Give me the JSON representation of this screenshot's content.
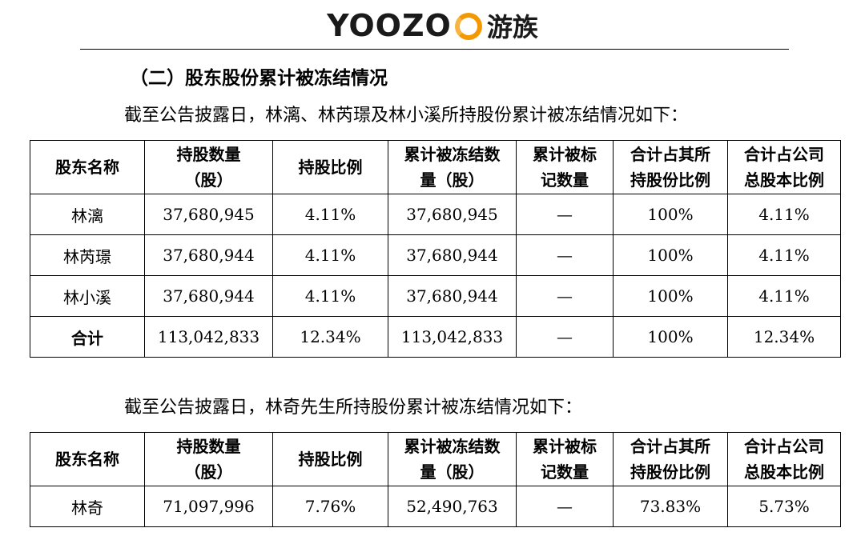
{
  "logo": {
    "text_before": "YOOZO",
    "mark_icon": "o-ring-logo-mark",
    "cn": "游族",
    "accent_color": "#f39800"
  },
  "section_title": "（二）股东股份累计被冻结情况",
  "paragraph1": "截至公告披露日，林漓、林芮璟及林小溪所持股份累计被冻结情况如下：",
  "paragraph2": "截至公告披露日，林奇先生所持股份累计被冻结情况如下：",
  "table_headers": [
    {
      "l1": "股东名称",
      "l2": ""
    },
    {
      "l1": "持股数量",
      "l2": "（股）"
    },
    {
      "l1": "持股比例",
      "l2": ""
    },
    {
      "l1": "累计被冻结数",
      "l2": "量（股）"
    },
    {
      "l1": "累计被标",
      "l2": "记数量"
    },
    {
      "l1": "合计占其所",
      "l2": "持股份比例"
    },
    {
      "l1": "合计占公司",
      "l2": "总股本比例"
    }
  ],
  "table1_rows": [
    [
      "林漓",
      "37,680,945",
      "4.11%",
      "37,680,945",
      "—",
      "100%",
      "4.11%"
    ],
    [
      "林芮璟",
      "37,680,944",
      "4.11%",
      "37,680,944",
      "—",
      "100%",
      "4.11%"
    ],
    [
      "林小溪",
      "37,680,944",
      "4.11%",
      "37,680,944",
      "—",
      "100%",
      "4.11%"
    ],
    [
      "合计",
      "113,042,833",
      "12.34%",
      "113,042,833",
      "—",
      "100%",
      "12.34%"
    ]
  ],
  "table2_rows": [
    [
      "林奇",
      "71,097,996",
      "7.76%",
      "52,490,763",
      "—",
      "73.83%",
      "5.73%"
    ]
  ]
}
